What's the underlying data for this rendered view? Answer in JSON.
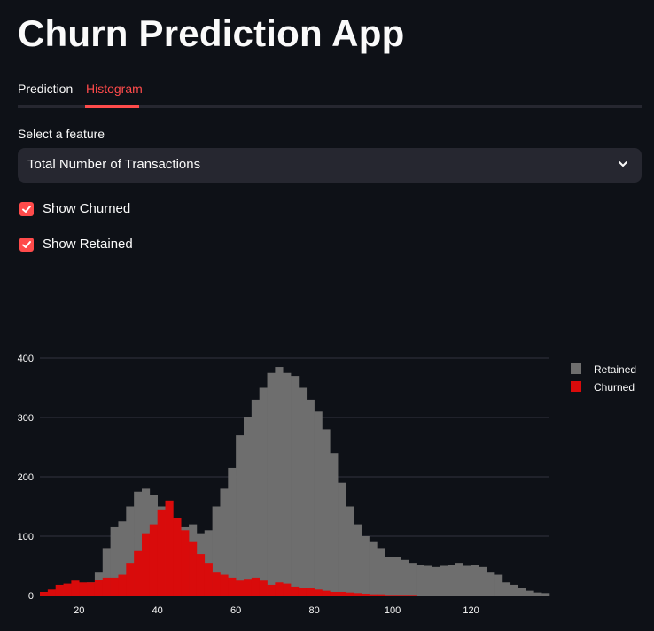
{
  "app": {
    "title": "Churn Prediction App"
  },
  "tabs": [
    {
      "label": "Prediction",
      "active": false
    },
    {
      "label": "Histogram",
      "active": true
    }
  ],
  "feature_select": {
    "label": "Select a feature",
    "value": "Total Number of Transactions"
  },
  "checkboxes": [
    {
      "label": "Show Churned",
      "checked": true
    },
    {
      "label": "Show Retained",
      "checked": true
    }
  ],
  "colors": {
    "background": "#0e1117",
    "accent": "#ff4b4b",
    "retained": "#6e6e6e",
    "churned": "#d90b0b",
    "grid": "#31333f"
  },
  "chart_data": {
    "type": "bar",
    "barmode": "overlay",
    "xlabel": "",
    "ylabel": "",
    "bin_width": 2,
    "x_start": 10,
    "xlim": [
      10,
      140
    ],
    "ylim": [
      0,
      400
    ],
    "x_ticks": [
      20,
      40,
      60,
      80,
      100,
      120
    ],
    "y_ticks": [
      0,
      100,
      200,
      300,
      400
    ],
    "legend_position": "top-right",
    "series": [
      {
        "name": "Retained",
        "color": "#6e6e6e",
        "values": [
          2,
          5,
          10,
          14,
          18,
          20,
          22,
          40,
          80,
          115,
          125,
          150,
          175,
          180,
          170,
          150,
          130,
          85,
          115,
          120,
          105,
          110,
          150,
          180,
          215,
          270,
          300,
          330,
          350,
          375,
          385,
          375,
          370,
          350,
          330,
          310,
          280,
          240,
          190,
          150,
          120,
          100,
          90,
          80,
          65,
          65,
          60,
          55,
          52,
          50,
          48,
          50,
          52,
          55,
          50,
          52,
          48,
          40,
          35,
          22,
          18,
          12,
          8,
          5,
          4
        ]
      },
      {
        "name": "Churned",
        "color": "#d90b0b",
        "values": [
          6,
          10,
          18,
          20,
          25,
          22,
          22,
          26,
          30,
          30,
          35,
          55,
          75,
          105,
          120,
          145,
          160,
          130,
          110,
          90,
          70,
          55,
          40,
          35,
          30,
          25,
          28,
          30,
          25,
          18,
          22,
          20,
          15,
          12,
          12,
          10,
          8,
          6,
          6,
          5,
          4,
          3,
          2,
          2,
          1,
          1,
          1,
          1,
          0,
          0,
          0,
          0,
          0,
          0,
          0,
          0,
          0,
          0,
          0,
          0,
          0,
          0,
          0,
          0,
          0
        ]
      }
    ]
  }
}
